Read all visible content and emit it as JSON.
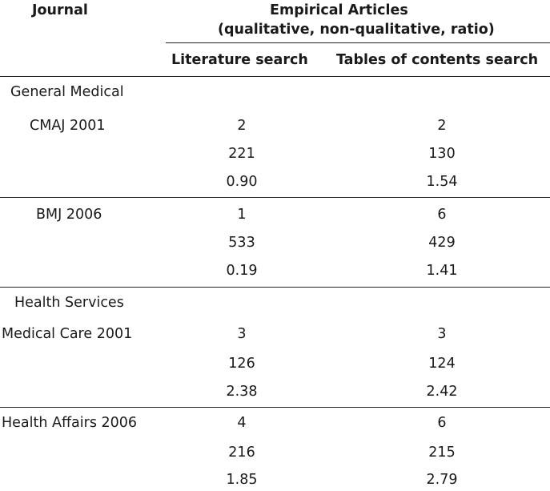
{
  "header": {
    "journal": "Journal",
    "empirical_line1": "Empirical Articles",
    "empirical_line2": "(qualitative, non-qualitative, ratio)",
    "col_lit": "Literature search",
    "col_toc": "Tables of contents search"
  },
  "sections": [
    {
      "label": "General Medical",
      "journals": [
        {
          "name": "CMAJ 2001",
          "lit": [
            "2",
            "221",
            "0.90"
          ],
          "toc": [
            "2",
            "130",
            "1.54"
          ]
        },
        {
          "name": "BMJ 2006",
          "lit": [
            "1",
            "533",
            "0.19"
          ],
          "toc": [
            "6",
            "429",
            "1.41"
          ]
        }
      ]
    },
    {
      "label": "Health Services",
      "journals": [
        {
          "name": "Medical Care 2001",
          "lit": [
            "3",
            "126",
            "2.38"
          ],
          "toc": [
            "3",
            "124",
            "2.42"
          ]
        },
        {
          "name": "Health Affairs 2006",
          "lit": [
            "4",
            "216",
            "1.85"
          ],
          "toc": [
            "6",
            "215",
            "2.79"
          ]
        }
      ]
    }
  ]
}
